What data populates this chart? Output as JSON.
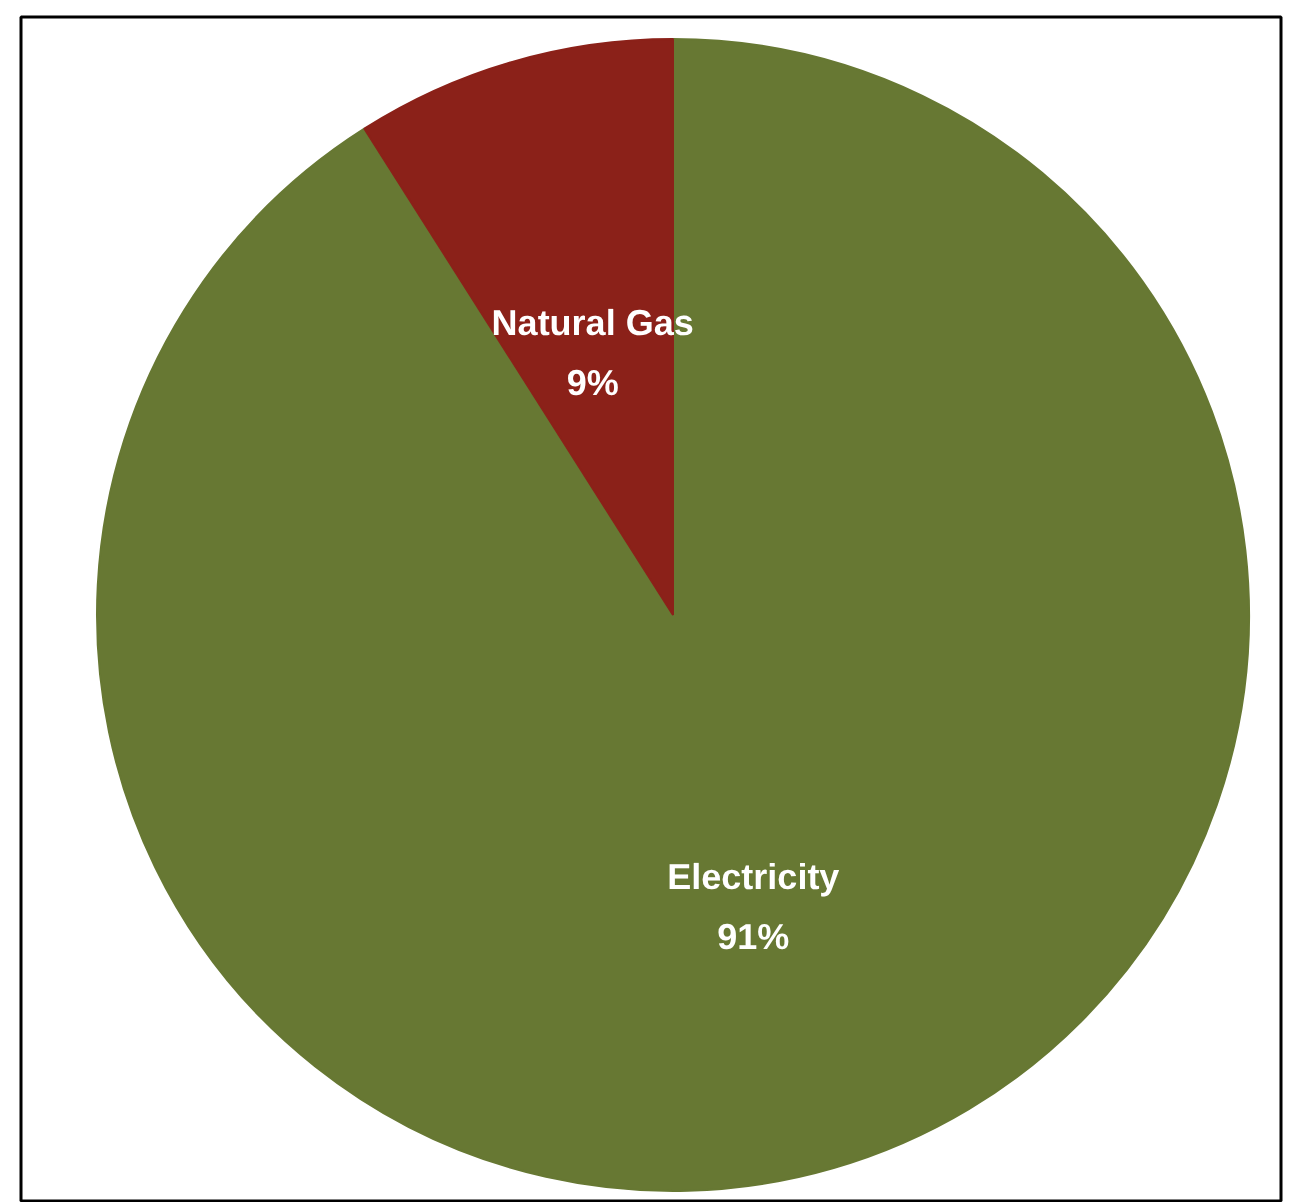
{
  "chart_data": {
    "type": "pie",
    "categories": [
      "Electricity",
      "Natural Gas"
    ],
    "values": [
      91,
      9
    ],
    "colors": [
      "#677833",
      "#8b2119"
    ],
    "value_labels": [
      "91%",
      "9%"
    ]
  }
}
